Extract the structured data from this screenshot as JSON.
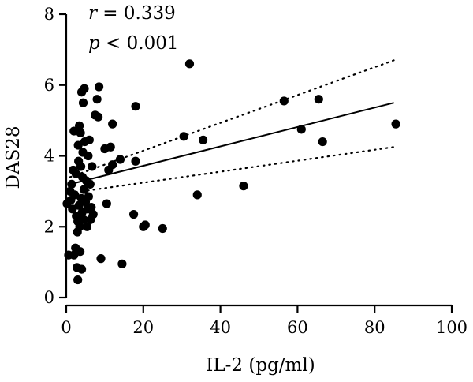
{
  "chart_data": {
    "type": "scatter",
    "title": "",
    "xlabel": "IL-2 (pg/ml)",
    "ylabel": "DAS28",
    "xlim": [
      0,
      100
    ],
    "ylim": [
      0,
      8
    ],
    "xticks": [
      0,
      20,
      40,
      60,
      80,
      100
    ],
    "yticks": [
      0,
      2,
      4,
      6,
      8
    ],
    "annotations": [
      {
        "name": "r-annotation",
        "symbol": "r",
        "text": " = 0.339"
      },
      {
        "name": "p-annotation",
        "symbol": "p",
        "text": " < 0.001"
      }
    ],
    "points": [
      {
        "x": 0.2,
        "y": 2.65
      },
      {
        "x": 0.6,
        "y": 1.2
      },
      {
        "x": 1.0,
        "y": 3.0
      },
      {
        "x": 1.2,
        "y": 2.75
      },
      {
        "x": 1.4,
        "y": 3.2
      },
      {
        "x": 1.6,
        "y": 2.5
      },
      {
        "x": 1.8,
        "y": 3.6
      },
      {
        "x": 2.0,
        "y": 4.7
      },
      {
        "x": 2.0,
        "y": 1.2
      },
      {
        "x": 2.2,
        "y": 2.9
      },
      {
        "x": 2.4,
        "y": 1.4
      },
      {
        "x": 2.5,
        "y": 3.5
      },
      {
        "x": 2.6,
        "y": 2.3
      },
      {
        "x": 2.8,
        "y": 0.85
      },
      {
        "x": 2.9,
        "y": 1.85
      },
      {
        "x": 3.0,
        "y": 2.15
      },
      {
        "x": 3.0,
        "y": 0.5
      },
      {
        "x": 3.1,
        "y": 4.3
      },
      {
        "x": 3.2,
        "y": 3.85
      },
      {
        "x": 3.3,
        "y": 2.6
      },
      {
        "x": 3.4,
        "y": 4.85
      },
      {
        "x": 3.5,
        "y": 2.0
      },
      {
        "x": 3.6,
        "y": 1.3
      },
      {
        "x": 3.7,
        "y": 4.65
      },
      {
        "x": 3.8,
        "y": 3.7
      },
      {
        "x": 3.9,
        "y": 2.8
      },
      {
        "x": 4.0,
        "y": 0.8
      },
      {
        "x": 4.0,
        "y": 5.8
      },
      {
        "x": 4.1,
        "y": 2.4
      },
      {
        "x": 4.2,
        "y": 3.4
      },
      {
        "x": 4.3,
        "y": 4.1
      },
      {
        "x": 4.4,
        "y": 5.5
      },
      {
        "x": 4.5,
        "y": 2.2
      },
      {
        "x": 4.6,
        "y": 3.05
      },
      {
        "x": 4.7,
        "y": 5.9
      },
      {
        "x": 4.8,
        "y": 4.4
      },
      {
        "x": 5.0,
        "y": 2.7
      },
      {
        "x": 5.2,
        "y": 3.3
      },
      {
        "x": 5.4,
        "y": 2.0
      },
      {
        "x": 5.5,
        "y": 2.5
      },
      {
        "x": 5.7,
        "y": 4.0
      },
      {
        "x": 5.8,
        "y": 2.85
      },
      {
        "x": 6.0,
        "y": 4.45
      },
      {
        "x": 6.2,
        "y": 3.2
      },
      {
        "x": 6.3,
        "y": 2.2
      },
      {
        "x": 6.5,
        "y": 2.55
      },
      {
        "x": 6.7,
        "y": 3.7
      },
      {
        "x": 7.0,
        "y": 2.35
      },
      {
        "x": 7.5,
        "y": 5.15
      },
      {
        "x": 8.0,
        "y": 5.6
      },
      {
        "x": 8.3,
        "y": 5.1
      },
      {
        "x": 8.5,
        "y": 5.95
      },
      {
        "x": 9.0,
        "y": 1.1
      },
      {
        "x": 10.0,
        "y": 4.2
      },
      {
        "x": 10.5,
        "y": 2.65
      },
      {
        "x": 11.0,
        "y": 3.6
      },
      {
        "x": 11.5,
        "y": 4.25
      },
      {
        "x": 12.0,
        "y": 4.9
      },
      {
        "x": 12.0,
        "y": 3.75
      },
      {
        "x": 14.0,
        "y": 3.9
      },
      {
        "x": 14.5,
        "y": 0.95
      },
      {
        "x": 17.5,
        "y": 2.35
      },
      {
        "x": 18.0,
        "y": 5.4
      },
      {
        "x": 18.0,
        "y": 3.85
      },
      {
        "x": 20.0,
        "y": 2.0
      },
      {
        "x": 20.5,
        "y": 2.05
      },
      {
        "x": 25.0,
        "y": 1.95
      },
      {
        "x": 30.5,
        "y": 4.55
      },
      {
        "x": 32.0,
        "y": 6.6
      },
      {
        "x": 34.0,
        "y": 2.9
      },
      {
        "x": 35.5,
        "y": 4.45
      },
      {
        "x": 46.0,
        "y": 3.15
      },
      {
        "x": 56.5,
        "y": 5.55
      },
      {
        "x": 61.0,
        "y": 4.75
      },
      {
        "x": 65.5,
        "y": 5.6
      },
      {
        "x": 66.5,
        "y": 4.4
      },
      {
        "x": 85.5,
        "y": 4.9
      }
    ],
    "fit_line": {
      "x": [
        1,
        85
      ],
      "y": [
        3.2,
        5.5
      ]
    },
    "ci_upper": {
      "x": [
        1,
        85
      ],
      "y": [
        3.4,
        6.7
      ]
    },
    "ci_lower": {
      "x": [
        1,
        85
      ],
      "y": [
        2.95,
        4.25
      ]
    },
    "colors": {
      "points": "#000000",
      "lines": "#000000"
    }
  }
}
